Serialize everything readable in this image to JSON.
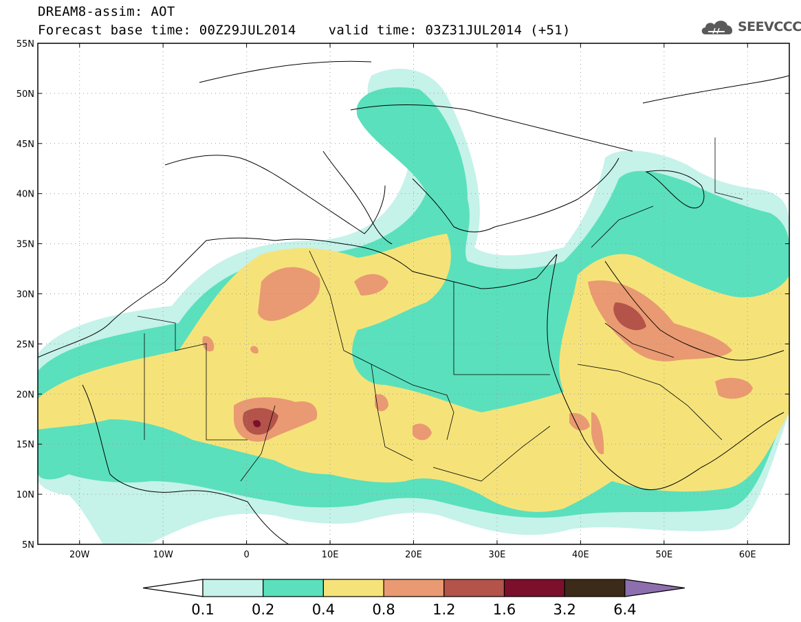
{
  "header": {
    "title_line1": "DREAM8-assim: AOT",
    "title_line2": "Forecast base time: 00Z29JUL2014    valid time: 03Z31JUL2014 (+51)"
  },
  "logo": {
    "text": "SEEVCCC",
    "icon": "cloud-logo-icon"
  },
  "map": {
    "extent": {
      "lon_min": -25,
      "lon_max": 65,
      "lat_min": 5,
      "lat_max": 55
    },
    "lat_ticks": [
      "55N",
      "50N",
      "45N",
      "40N",
      "35N",
      "30N",
      "25N",
      "20N",
      "15N",
      "10N",
      "5N"
    ],
    "lon_ticks": [
      "20W",
      "10W",
      "0",
      "10E",
      "20E",
      "30E",
      "40E",
      "50E",
      "60E"
    ],
    "gridlines": "dotted"
  },
  "colorbar": {
    "labels": [
      "0.1",
      "0.2",
      "0.4",
      "0.8",
      "1.2",
      "1.6",
      "3.2",
      "6.4"
    ],
    "colors": [
      "#c5f2e9",
      "#5ae0bc",
      "#f5e37a",
      "#e99a72",
      "#b3534a",
      "#7c0f2c",
      "#3c2b18"
    ],
    "extend_low": "#ffffff",
    "extend_high": "#8e6fae"
  },
  "colors": {
    "c01": "#c5f2e9",
    "c02": "#5ae0bc",
    "c04": "#f5e37a",
    "c08": "#e99a72",
    "c12": "#b3534a",
    "c16": "#7c0f2c"
  }
}
